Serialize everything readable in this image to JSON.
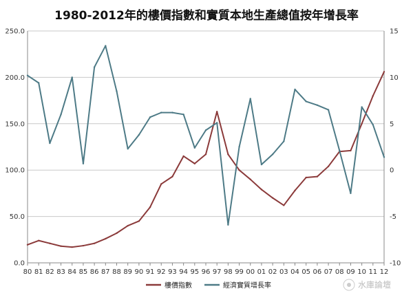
{
  "watermark": "水庫論壇",
  "chart_data": {
    "type": "line",
    "title": "1980-2012年的樓價指數和實質本地生產總值按年增長率",
    "categories": [
      "80",
      "81",
      "82",
      "83",
      "84",
      "85",
      "86",
      "87",
      "88",
      "89",
      "90",
      "91",
      "92",
      "93",
      "94",
      "95",
      "96",
      "97",
      "98",
      "99",
      "00",
      "01",
      "02",
      "03",
      "04",
      "05",
      "06",
      "07",
      "08",
      "09",
      "10",
      "11",
      "12"
    ],
    "y_left": {
      "ticks": [
        "0.0",
        "50.0",
        "100.0",
        "150.0",
        "200.0",
        "250.0"
      ],
      "ylim": [
        0,
        250
      ]
    },
    "y_right": {
      "ticks": [
        "-10",
        "-5",
        "0",
        "5",
        "10",
        "15"
      ],
      "ylim": [
        -10,
        15
      ]
    },
    "grid": true,
    "legend_position": "bottom",
    "series": [
      {
        "name": "樓價指數",
        "axis": "left",
        "color": "#8b3a3a",
        "values": [
          19.5,
          24,
          21,
          18,
          17,
          18.5,
          21,
          26,
          32,
          40,
          45,
          60,
          85,
          93,
          115,
          107,
          117,
          163,
          117,
          100,
          90,
          79,
          70,
          62,
          78,
          92,
          93,
          104,
          120,
          121,
          150,
          180,
          206
        ]
      },
      {
        "name": "經濟實質增長率",
        "axis": "right",
        "color": "#4d7a86",
        "values": [
          10.2,
          9.4,
          2.9,
          6.0,
          10.0,
          0.7,
          11.1,
          13.4,
          8.5,
          2.3,
          3.8,
          5.7,
          6.2,
          6.2,
          6.0,
          2.4,
          4.3,
          5.1,
          -5.9,
          2.5,
          7.7,
          0.6,
          1.7,
          3.1,
          8.7,
          7.4,
          7.0,
          6.5,
          2.1,
          -2.5,
          6.8,
          4.9,
          1.4
        ]
      }
    ]
  }
}
